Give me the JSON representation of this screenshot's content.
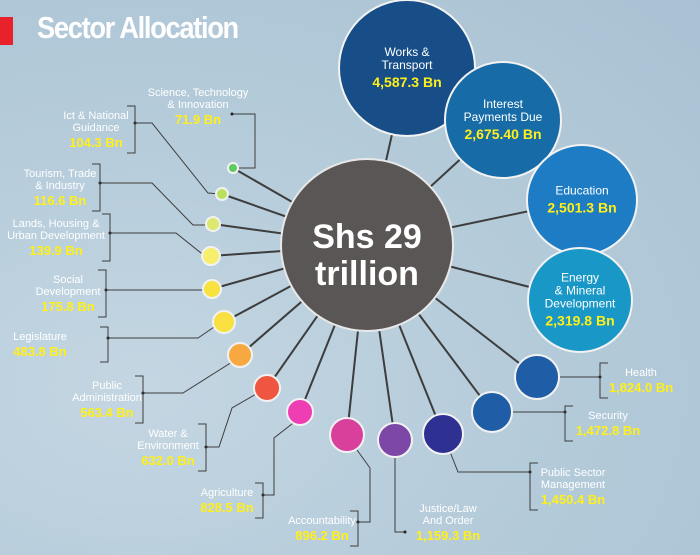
{
  "title": "Sector Allocation",
  "center": {
    "line1": "Shs 29",
    "line2": "trillion"
  },
  "colors": {
    "background": "#b3cad9",
    "center": "#5b5656",
    "value_text": "#ffef1a",
    "title_bar": "#e8212b"
  },
  "chart_data": {
    "type": "bubble",
    "title": "Sector Allocation",
    "total_label": "Shs 29 trillion",
    "unit": "Bn (Shs)",
    "sectors": [
      {
        "name": [
          "Works &",
          "Transport"
        ],
        "value": "4,587.3 Bn",
        "amount": 4587.3,
        "color": "#174e88"
      },
      {
        "name": [
          "Interest",
          "Payments Due"
        ],
        "value": "2,675.40 Bn",
        "amount": 2675.4,
        "color": "#176ca7"
      },
      {
        "name": [
          "Education"
        ],
        "value": "2,501.3 Bn",
        "amount": 2501.3,
        "color": "#1d7cc4"
      },
      {
        "name": [
          "Energy",
          "& Mineral",
          "Development"
        ],
        "value": "2,319.8 Bn",
        "amount": 2319.8,
        "color": "#1997c6"
      },
      {
        "name": [
          "Health"
        ],
        "value": "1,824.0 Bn",
        "amount": 1824.0,
        "color": "#1f5da6"
      },
      {
        "name": [
          "Security"
        ],
        "value": "1,472.8 Bn",
        "amount": 1472.8,
        "color": "#1f5da6"
      },
      {
        "name": [
          "Public Sector",
          "Management"
        ],
        "value": "1,450.4 Bn",
        "amount": 1450.4,
        "color": "#2f3192"
      },
      {
        "name": [
          "Justice/Law",
          "And Order"
        ],
        "value": "1,159.3 Bn",
        "amount": 1159.3,
        "color": "#7c47a6"
      },
      {
        "name": [
          "Accountability"
        ],
        "value": "896.2 Bn",
        "amount": 896.2,
        "color": "#d8409c"
      },
      {
        "name": [
          "Agriculture"
        ],
        "value": "828.5 Bn",
        "amount": 828.5,
        "color": "#ef3db3"
      },
      {
        "name": [
          "Water &",
          "Environment"
        ],
        "value": "632.0 Bn",
        "amount": 632.0,
        "color": "#ef5540"
      },
      {
        "name": [
          "Public",
          "Administration"
        ],
        "value": "563.4 Bn",
        "amount": 563.4,
        "color": "#f7a840"
      },
      {
        "name": [
          "Legislature"
        ],
        "value": "483.8 Bn",
        "amount": 483.8,
        "color": "#f8e040"
      },
      {
        "name": [
          "Social",
          "Development"
        ],
        "value": "175.8 Bn",
        "amount": 175.8,
        "color": "#f8e240"
      },
      {
        "name": [
          "Lands, Housing &",
          "Urban Development"
        ],
        "value": "139.9 Bn",
        "amount": 139.9,
        "color": "#f6ee6c"
      },
      {
        "name": [
          "Tourism, Trade",
          "& Industry"
        ],
        "value": "116.6 Bn",
        "amount": 116.6,
        "color": "#dce86e"
      },
      {
        "name": [
          "Ict & National",
          "Guidance"
        ],
        "value": "104.3 Bn",
        "amount": 104.3,
        "color": "#bbe05e"
      },
      {
        "name": [
          "Science, Technology",
          "& Innovation"
        ],
        "value": "71.9 Bn",
        "amount": 71.9,
        "color": "#5ecb5e"
      }
    ]
  }
}
